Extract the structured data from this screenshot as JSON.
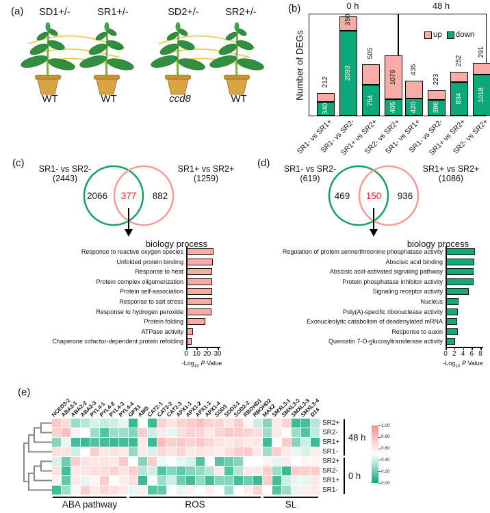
{
  "panels": {
    "a": {
      "tag": "(a)",
      "grafts": [
        {
          "top": "SD1+/-",
          "bottom": "WT",
          "bottom_italic": false
        },
        {
          "top": "SR1+/-",
          "bottom": "WT",
          "bottom_italic": false
        },
        {
          "top": "SD2+/-",
          "bottom": "ccd8",
          "bottom_italic": true
        },
        {
          "top": "SR2+/-",
          "bottom": "WT",
          "bottom_italic": false
        }
      ]
    },
    "b": {
      "tag": "(b)"
    },
    "c": {
      "tag": "(c)"
    },
    "d": {
      "tag": "(d)"
    },
    "e": {
      "tag": "(e)"
    }
  },
  "chart_data": [
    {
      "id": "deg-stacked-bars",
      "type": "bar",
      "stacked": true,
      "ylabel": "Number of DEGs",
      "legend": {
        "up": "up",
        "down": "down"
      },
      "ylim": [
        0,
        2500
      ],
      "colors": {
        "up": "#F9ABA7",
        "down": "#0CA878"
      },
      "groups": [
        {
          "title": "0 h",
          "categories": [
            "SR1- vs SR1+",
            "SR1- vs SR2-",
            "SR1+ vs SR2+",
            "SR2- vs SR2+"
          ],
          "up": [
            212,
            350,
            505,
            1079
          ],
          "down": [
            340,
            2093,
            754,
            405
          ]
        },
        {
          "title": "48 h",
          "categories": [
            "SR1- vs SR1+",
            "SR1- vs SR2-",
            "SR1+ vs SR2+",
            "SR2- vs SR2+"
          ],
          "up": [
            435,
            223,
            252,
            291
          ],
          "down": [
            420,
            396,
            834,
            1018
          ]
        }
      ]
    },
    {
      "id": "venn-down-degs",
      "type": "venn",
      "left_label": "SR1- vs SR2-",
      "left_total": "(2443)",
      "right_label": "SR1+ vs SR2+",
      "right_total": "(1259)",
      "left_only": "2066",
      "overlap": "377",
      "right_only": "882",
      "left_color": "#12A05A",
      "right_color": "#F79A93"
    },
    {
      "id": "go-biology-process-377",
      "type": "bar",
      "orientation": "horizontal",
      "title": "biology process",
      "categories": [
        "Response to reactive oxygen species",
        "Unfolded protein binding",
        "Response to heat",
        "Protein complex oligomerization",
        "Protein self-association",
        "Response to salt stress",
        "Response to hydrogen peroxide",
        "Protein folding",
        "ATPase activity",
        "Chaperone cofactor-dependent protein refolding"
      ],
      "values": [
        26,
        25.5,
        24.5,
        25,
        24.5,
        25,
        24,
        18,
        6.5,
        5.5
      ],
      "xlim": [
        0,
        30
      ],
      "xticks": [
        0,
        10,
        20,
        30
      ],
      "xlabel_pre": "-Log",
      "xlabel_sub": "10",
      "xlabel_p": "P",
      "xlabel_post": " Value",
      "color": "#F9ABA7"
    },
    {
      "id": "venn-up-degs",
      "type": "venn",
      "left_label": "SR1- vs SR2-",
      "left_total": "(619)",
      "right_label": "SR1+ vs SR2+",
      "right_total": "(1086)",
      "left_only": "469",
      "overlap": "150",
      "right_only": "936",
      "left_color": "#12A05A",
      "right_color": "#F79A93"
    },
    {
      "id": "go-biology-process-150",
      "type": "bar",
      "orientation": "horizontal",
      "title": "biology process",
      "categories": [
        "Regulation of protein serine/threonine phosphatase activity",
        "Abscisic acid binding",
        "Abscisic acid-activated signaling pathway",
        "Protein phosphatase inhibitor activity",
        "Signaling receptor activity",
        "Nucleus",
        "Poly(A)-specific ribonuclease activity",
        "Exonucleolytic catabolism of deadenylated mRNA",
        "Response to auxin",
        "Quercetin 7-O-glucosyltransferase activity"
      ],
      "values": [
        6.7,
        6.6,
        6.5,
        6.4,
        5.4,
        3.0,
        2.8,
        2.7,
        2.8,
        2.2
      ],
      "xlim": [
        0,
        8
      ],
      "xticks": [
        0,
        2,
        4,
        6,
        8
      ],
      "xlabel_pre": "-Log",
      "xlabel_sub": "10",
      "xlabel_p": "P",
      "xlabel_post": " Value",
      "color": "#10AC74"
    },
    {
      "id": "expression-heatmap",
      "type": "heatmap",
      "columns": [
        "NCED3-2",
        "ABA2-1",
        "ABA2-2",
        "ABA2-3",
        "PYL4-1",
        "PYL4-2",
        "PYL4-3",
        "PYL4-4",
        "GPX1",
        "ABI5",
        "CAT2-1",
        "CAT2-2",
        "CAT2-3",
        "APX1-1",
        "APX1-2",
        "APX1-3",
        "APX1-4",
        "SOD3",
        "SOD2-1",
        "SOD2-2",
        "RBOHD1",
        "RBOHD2",
        "MAX2",
        "SMXL3-1",
        "SMXL3-2",
        "SMXL3-3",
        "SMXL3-4",
        "D14"
      ],
      "rows": [
        "SR2+",
        "SR2-",
        "SR1+",
        "SR1-",
        "SR2+",
        "SR2-",
        "SR1+",
        "SR1-"
      ],
      "row_groups": [
        {
          "label": "48 h",
          "from": 0,
          "to": 3
        },
        {
          "label": "0 h",
          "from": 4,
          "to": 7
        }
      ],
      "categories": [
        {
          "label": "ABA pathway",
          "from": 0,
          "to": 7
        },
        {
          "label": "ROS",
          "from": 8,
          "to": 21
        },
        {
          "label": "SL",
          "from": 22,
          "to": 27
        }
      ],
      "values": [
        [
          0.75,
          0.65,
          0.3,
          0.35,
          0.42,
          0.38,
          0.4,
          0.45,
          0.1,
          0.5,
          0.1,
          0.7,
          0.62,
          0.7,
          0.72,
          0.78,
          0.7,
          0.7,
          0.62,
          0.72,
          0.55,
          0.4,
          0.25,
          0.6,
          0.7,
          0.1,
          0.12,
          0.35
        ],
        [
          0.7,
          0.78,
          0.55,
          0.5,
          0.3,
          0.15,
          0.3,
          0.3,
          0.25,
          0.72,
          0.4,
          0.6,
          0.45,
          0.65,
          0.7,
          0.68,
          0.6,
          0.7,
          0.75,
          0.72,
          0.7,
          0.65,
          0.3,
          0.6,
          0.5,
          0.3,
          0.15,
          0.38
        ],
        [
          0.25,
          0.45,
          0.12,
          0.1,
          0.15,
          0.12,
          0.1,
          0.12,
          0.1,
          0.6,
          0.1,
          0.8,
          0.72,
          0.75,
          0.7,
          0.75,
          0.68,
          0.62,
          0.6,
          0.65,
          0.6,
          0.6,
          0.1,
          0.52,
          0.73,
          0.25,
          0.4,
          0.1
        ],
        [
          0.65,
          0.62,
          0.4,
          0.5,
          0.72,
          0.6,
          0.62,
          0.6,
          0.28,
          0.6,
          0.42,
          0.68,
          0.62,
          0.7,
          0.6,
          0.62,
          0.6,
          0.58,
          0.65,
          0.72,
          0.72,
          0.6,
          0.3,
          0.72,
          0.6,
          0.45,
          0.42,
          0.58
        ],
        [
          0.42,
          0.2,
          0.72,
          0.62,
          0.6,
          0.62,
          0.6,
          0.75,
          0.5,
          0.25,
          0.72,
          0.46,
          0.48,
          0.45,
          0.42,
          0.15,
          0.5,
          0.15,
          0.2,
          0.25,
          0.5,
          0.5,
          0.55,
          0.45,
          0.58,
          0.5,
          0.55,
          0.55
        ],
        [
          0.62,
          0.12,
          0.6,
          0.62,
          0.65,
          0.65,
          0.7,
          0.62,
          0.72,
          0.35,
          0.4,
          0.15,
          0.25,
          0.18,
          0.25,
          0.28,
          0.35,
          0.6,
          0.15,
          0.35,
          0.6,
          0.6,
          0.72,
          0.3,
          0.1,
          0.72,
          0.72,
          0.72
        ],
        [
          0.55,
          0.18,
          0.6,
          0.45,
          0.55,
          0.72,
          0.5,
          0.58,
          0.65,
          0.1,
          0.52,
          0.3,
          0.4,
          0.2,
          0.12,
          0.28,
          0.12,
          0.25,
          0.25,
          0.12,
          0.2,
          0.1,
          0.72,
          0.12,
          0.4,
          0.45,
          0.45,
          0.6
        ],
        [
          0.12,
          0.3,
          0.47,
          0.72,
          0.6,
          0.68,
          0.65,
          0.6,
          0.45,
          0.58,
          0.15,
          0.18,
          0.5,
          0.45,
          0.55,
          0.5,
          0.58,
          0.5,
          0.3,
          0.5,
          0.58,
          0.7,
          0.5,
          0.15,
          0.3,
          0.45,
          0.58,
          0.6
        ]
      ],
      "colorbar": {
        "ticks": [
          "1.00",
          "0.80",
          "0.60",
          "0.40",
          "0.20",
          "0.00"
        ],
        "high": "#F5908C",
        "mid": "#FFFFFF",
        "low": "#0CA878"
      }
    }
  ]
}
